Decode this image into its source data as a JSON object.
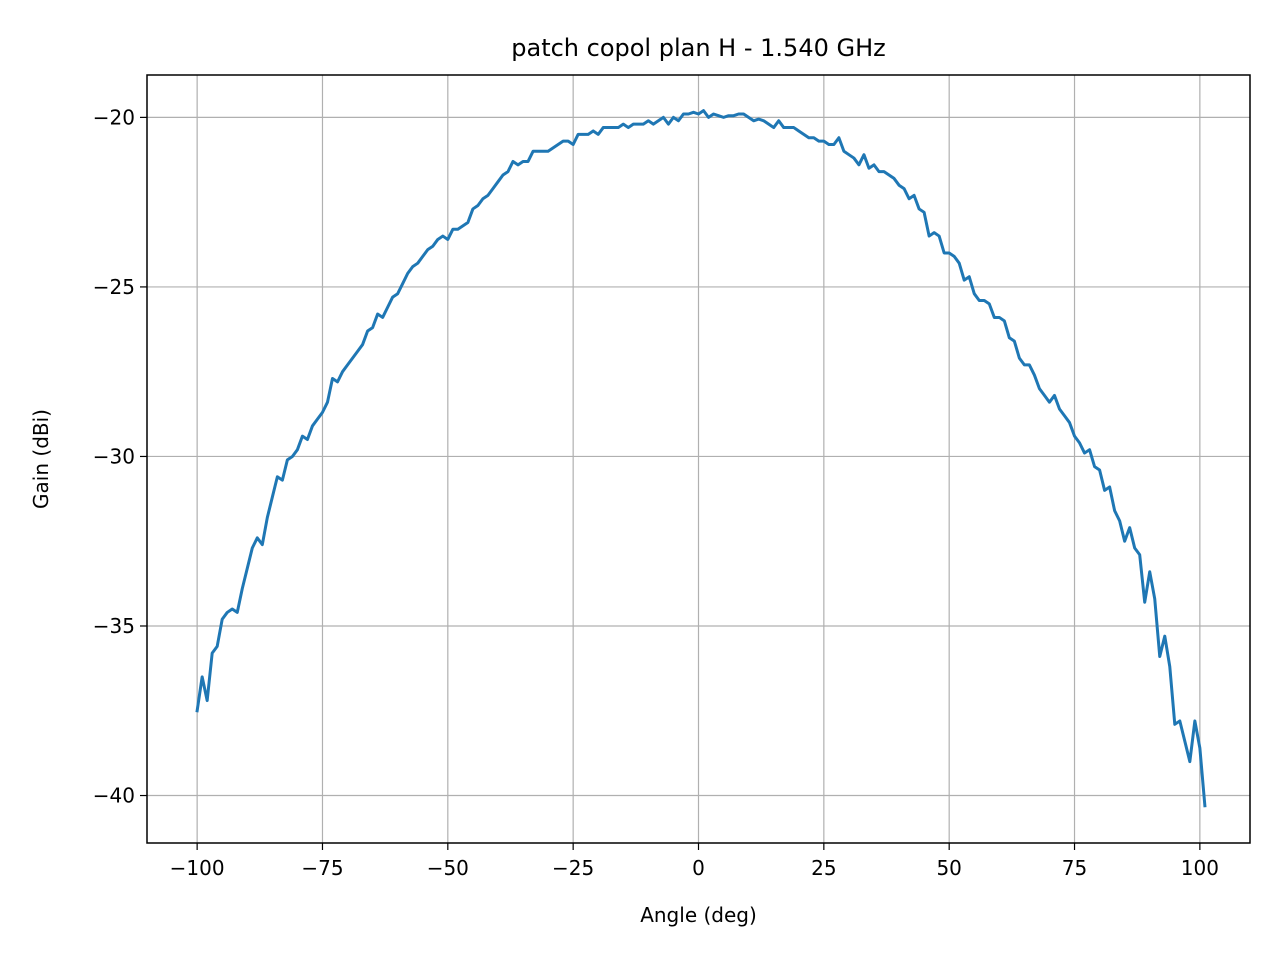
{
  "chart_data": {
    "type": "line",
    "title": "patch copol plan H - 1.540 GHz",
    "xlabel": "Angle (deg)",
    "ylabel": "Gain (dBi)",
    "xlim": [
      -110,
      110
    ],
    "ylim": [
      -41.4,
      -18.75
    ],
    "xticks": [
      -100,
      -75,
      -50,
      -25,
      0,
      25,
      50,
      75,
      100
    ],
    "xtick_labels": [
      "−100",
      "−75",
      "−50",
      "−25",
      "0",
      "25",
      "50",
      "75",
      "100"
    ],
    "yticks": [
      -20,
      -25,
      -30,
      -35,
      -40
    ],
    "ytick_labels": [
      "−20",
      "−25",
      "−30",
      "−35",
      "−40"
    ],
    "grid": true,
    "legend": "none",
    "series": [
      {
        "color": "#1f77b4",
        "points": [
          [
            -100,
            -37.5
          ],
          [
            -99,
            -36.5
          ],
          [
            -98,
            -37.2
          ],
          [
            -97,
            -35.8
          ],
          [
            -96,
            -35.6
          ],
          [
            -95,
            -34.8
          ],
          [
            -94,
            -34.6
          ],
          [
            -93,
            -34.5
          ],
          [
            -92,
            -34.6
          ],
          [
            -91,
            -33.9
          ],
          [
            -90,
            -33.3
          ],
          [
            -89,
            -32.7
          ],
          [
            -88,
            -32.4
          ],
          [
            -87,
            -32.6
          ],
          [
            -86,
            -31.8
          ],
          [
            -85,
            -31.2
          ],
          [
            -84,
            -30.6
          ],
          [
            -83,
            -30.7
          ],
          [
            -82,
            -30.1
          ],
          [
            -81,
            -30.0
          ],
          [
            -80,
            -29.8
          ],
          [
            -79,
            -29.4
          ],
          [
            -78,
            -29.5
          ],
          [
            -77,
            -29.1
          ],
          [
            -76,
            -28.9
          ],
          [
            -75,
            -28.7
          ],
          [
            -74,
            -28.4
          ],
          [
            -73,
            -27.7
          ],
          [
            -72,
            -27.8
          ],
          [
            -71,
            -27.5
          ],
          [
            -70,
            -27.3
          ],
          [
            -69,
            -27.1
          ],
          [
            -68,
            -26.9
          ],
          [
            -67,
            -26.7
          ],
          [
            -66,
            -26.3
          ],
          [
            -65,
            -26.2
          ],
          [
            -64,
            -25.8
          ],
          [
            -63,
            -25.9
          ],
          [
            -62,
            -25.6
          ],
          [
            -61,
            -25.3
          ],
          [
            -60,
            -25.2
          ],
          [
            -59,
            -24.9
          ],
          [
            -58,
            -24.6
          ],
          [
            -57,
            -24.4
          ],
          [
            -56,
            -24.3
          ],
          [
            -55,
            -24.1
          ],
          [
            -54,
            -23.9
          ],
          [
            -53,
            -23.8
          ],
          [
            -52,
            -23.6
          ],
          [
            -51,
            -23.5
          ],
          [
            -50,
            -23.6
          ],
          [
            -49,
            -23.3
          ],
          [
            -48,
            -23.3
          ],
          [
            -47,
            -23.2
          ],
          [
            -46,
            -23.1
          ],
          [
            -45,
            -22.7
          ],
          [
            -44,
            -22.6
          ],
          [
            -43,
            -22.4
          ],
          [
            -42,
            -22.3
          ],
          [
            -41,
            -22.1
          ],
          [
            -40,
            -21.9
          ],
          [
            -39,
            -21.7
          ],
          [
            -38,
            -21.6
          ],
          [
            -37,
            -21.3
          ],
          [
            -36,
            -21.4
          ],
          [
            -35,
            -21.3
          ],
          [
            -34,
            -21.3
          ],
          [
            -33,
            -21.0
          ],
          [
            -32,
            -21.0
          ],
          [
            -31,
            -21.0
          ],
          [
            -30,
            -21.0
          ],
          [
            -29,
            -20.9
          ],
          [
            -28,
            -20.8
          ],
          [
            -27,
            -20.7
          ],
          [
            -26,
            -20.7
          ],
          [
            -25,
            -20.8
          ],
          [
            -24,
            -20.5
          ],
          [
            -23,
            -20.5
          ],
          [
            -22,
            -20.5
          ],
          [
            -21,
            -20.4
          ],
          [
            -20,
            -20.5
          ],
          [
            -19,
            -20.3
          ],
          [
            -18,
            -20.3
          ],
          [
            -17,
            -20.3
          ],
          [
            -16,
            -20.3
          ],
          [
            -15,
            -20.2
          ],
          [
            -14,
            -20.3
          ],
          [
            -13,
            -20.2
          ],
          [
            -12,
            -20.2
          ],
          [
            -11,
            -20.2
          ],
          [
            -10,
            -20.1
          ],
          [
            -9,
            -20.2
          ],
          [
            -8,
            -20.1
          ],
          [
            -7,
            -20.0
          ],
          [
            -6,
            -20.2
          ],
          [
            -5,
            -20.0
          ],
          [
            -4,
            -20.1
          ],
          [
            -3,
            -19.9
          ],
          [
            -2,
            -19.9
          ],
          [
            -1,
            -19.85
          ],
          [
            0,
            -19.9
          ],
          [
            1,
            -19.8
          ],
          [
            2,
            -20.0
          ],
          [
            3,
            -19.9
          ],
          [
            4,
            -19.95
          ],
          [
            5,
            -20.0
          ],
          [
            6,
            -19.95
          ],
          [
            7,
            -19.95
          ],
          [
            8,
            -19.9
          ],
          [
            9,
            -19.9
          ],
          [
            10,
            -20.0
          ],
          [
            11,
            -20.1
          ],
          [
            12,
            -20.05
          ],
          [
            13,
            -20.1
          ],
          [
            14,
            -20.2
          ],
          [
            15,
            -20.3
          ],
          [
            16,
            -20.1
          ],
          [
            17,
            -20.3
          ],
          [
            18,
            -20.3
          ],
          [
            19,
            -20.3
          ],
          [
            20,
            -20.4
          ],
          [
            21,
            -20.5
          ],
          [
            22,
            -20.6
          ],
          [
            23,
            -20.6
          ],
          [
            24,
            -20.7
          ],
          [
            25,
            -20.7
          ],
          [
            26,
            -20.8
          ],
          [
            27,
            -20.8
          ],
          [
            28,
            -20.6
          ],
          [
            29,
            -21.0
          ],
          [
            30,
            -21.1
          ],
          [
            31,
            -21.2
          ],
          [
            32,
            -21.4
          ],
          [
            33,
            -21.1
          ],
          [
            34,
            -21.5
          ],
          [
            35,
            -21.4
          ],
          [
            36,
            -21.6
          ],
          [
            37,
            -21.6
          ],
          [
            38,
            -21.7
          ],
          [
            39,
            -21.8
          ],
          [
            40,
            -22.0
          ],
          [
            41,
            -22.1
          ],
          [
            42,
            -22.4
          ],
          [
            43,
            -22.3
          ],
          [
            44,
            -22.7
          ],
          [
            45,
            -22.8
          ],
          [
            46,
            -23.5
          ],
          [
            47,
            -23.4
          ],
          [
            48,
            -23.5
          ],
          [
            49,
            -24.0
          ],
          [
            50,
            -24.0
          ],
          [
            51,
            -24.1
          ],
          [
            52,
            -24.3
          ],
          [
            53,
            -24.8
          ],
          [
            54,
            -24.7
          ],
          [
            55,
            -25.2
          ],
          [
            56,
            -25.4
          ],
          [
            57,
            -25.4
          ],
          [
            58,
            -25.5
          ],
          [
            59,
            -25.9
          ],
          [
            60,
            -25.9
          ],
          [
            61,
            -26.0
          ],
          [
            62,
            -26.5
          ],
          [
            63,
            -26.6
          ],
          [
            64,
            -27.1
          ],
          [
            65,
            -27.3
          ],
          [
            66,
            -27.3
          ],
          [
            67,
            -27.6
          ],
          [
            68,
            -28.0
          ],
          [
            69,
            -28.2
          ],
          [
            70,
            -28.4
          ],
          [
            71,
            -28.2
          ],
          [
            72,
            -28.6
          ],
          [
            73,
            -28.8
          ],
          [
            74,
            -29.0
          ],
          [
            75,
            -29.4
          ],
          [
            76,
            -29.6
          ],
          [
            77,
            -29.9
          ],
          [
            78,
            -29.8
          ],
          [
            79,
            -30.3
          ],
          [
            80,
            -30.4
          ],
          [
            81,
            -31.0
          ],
          [
            82,
            -30.9
          ],
          [
            83,
            -31.6
          ],
          [
            84,
            -31.9
          ],
          [
            85,
            -32.5
          ],
          [
            86,
            -32.1
          ],
          [
            87,
            -32.7
          ],
          [
            88,
            -32.9
          ],
          [
            89,
            -34.3
          ],
          [
            90,
            -33.4
          ],
          [
            91,
            -34.2
          ],
          [
            92,
            -35.9
          ],
          [
            93,
            -35.3
          ],
          [
            94,
            -36.2
          ],
          [
            95,
            -37.9
          ],
          [
            96,
            -37.8
          ],
          [
            97,
            -38.4
          ],
          [
            98,
            -39.0
          ],
          [
            99,
            -37.8
          ],
          [
            100,
            -38.6
          ],
          [
            101,
            -40.3
          ]
        ]
      }
    ]
  }
}
